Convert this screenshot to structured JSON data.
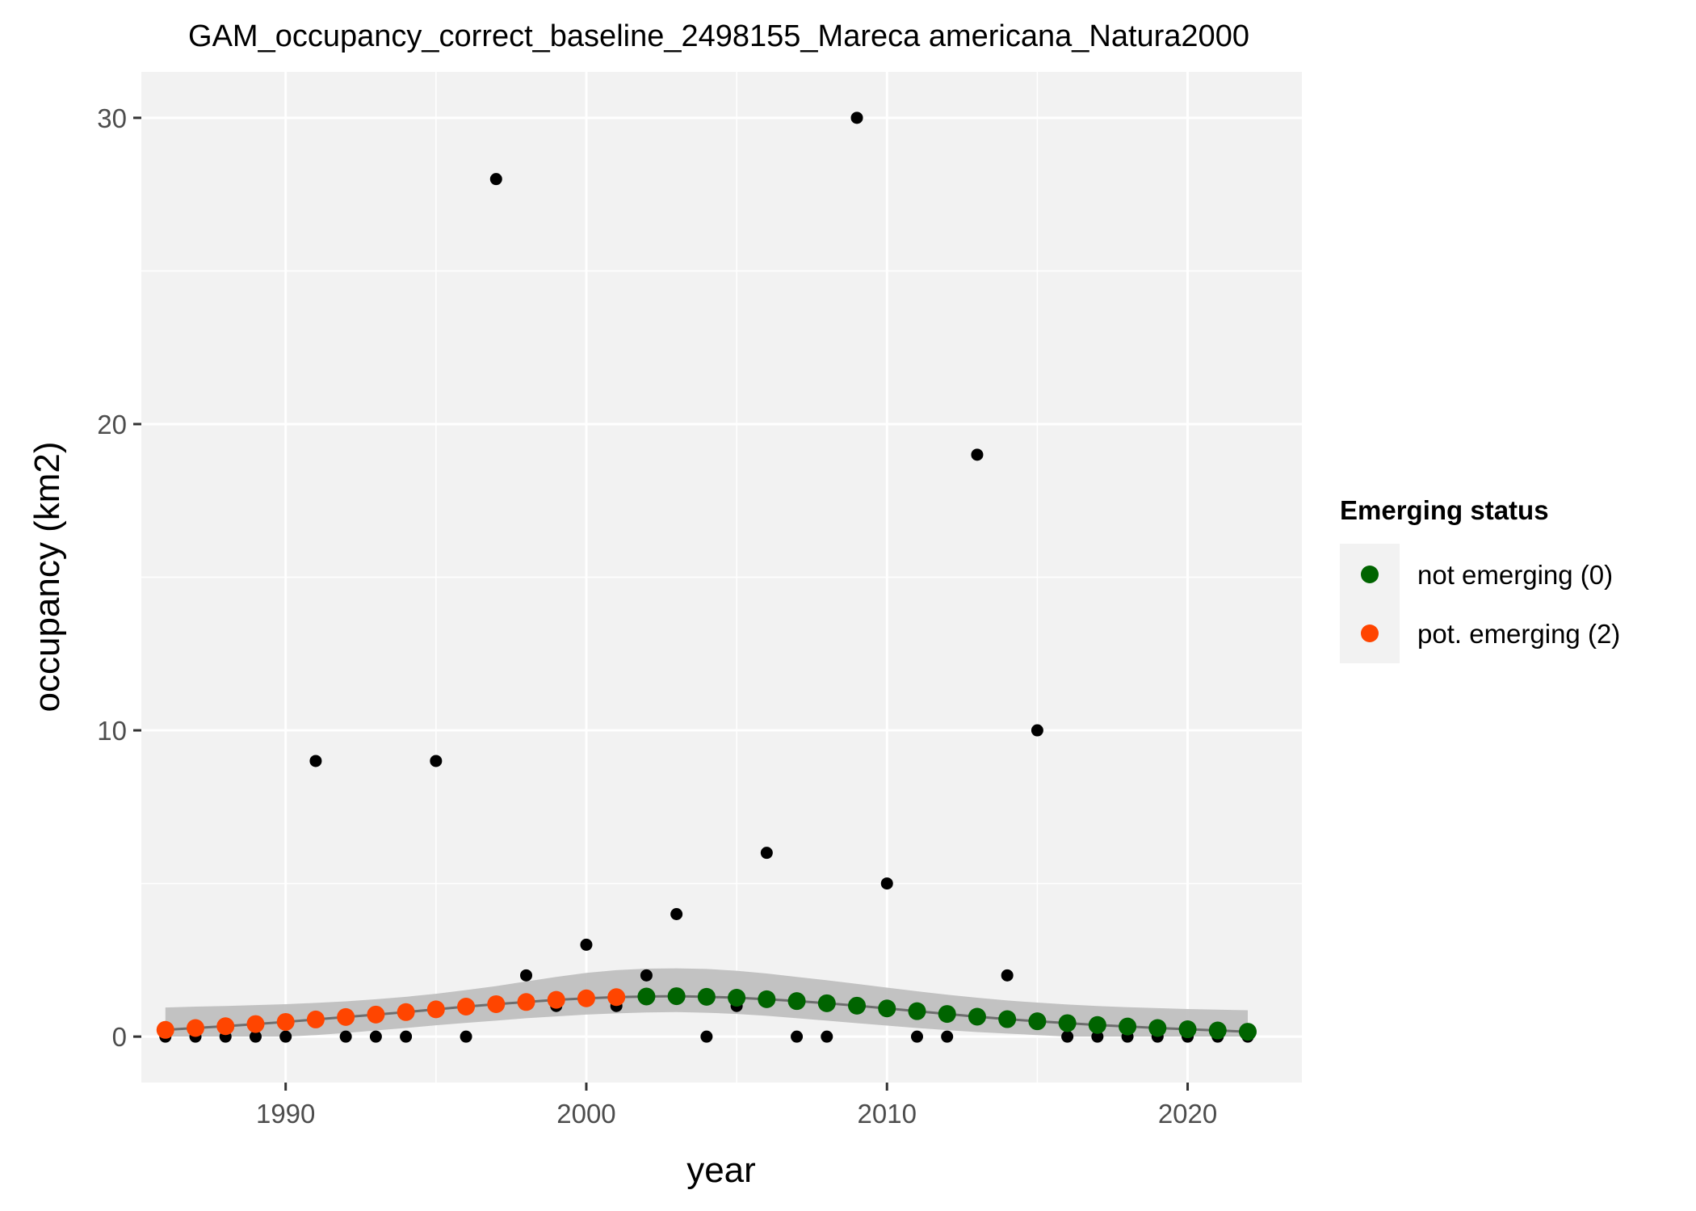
{
  "chart_data": {
    "type": "scatter",
    "title": "GAM_occupancy_correct_baseline_2498155_Mareca americana_Natura2000",
    "xlabel": "year",
    "ylabel": "occupancy (km2)",
    "xlim": [
      1985.2,
      2023.8
    ],
    "ylim": [
      -1.5,
      31.5
    ],
    "x_ticks": [
      1990,
      2000,
      2010,
      2020
    ],
    "x_tick_labels": [
      "1990",
      "2000",
      "2010",
      "2020"
    ],
    "y_ticks": [
      0,
      10,
      20,
      30
    ],
    "y_tick_labels": [
      "0",
      "10",
      "20",
      "30"
    ],
    "x_minor_ticks": [
      1985,
      1995,
      2005,
      2015
    ],
    "y_minor_ticks": [
      5,
      15,
      25
    ],
    "grid": true,
    "background": "#f2f2f2",
    "observed": {
      "color": "#000000",
      "x": [
        1986,
        1987,
        1988,
        1989,
        1990,
        1991,
        1992,
        1993,
        1994,
        1995,
        1996,
        1997,
        1998,
        1999,
        2000,
        2001,
        2002,
        2003,
        2004,
        2005,
        2006,
        2007,
        2008,
        2009,
        2010,
        2011,
        2012,
        2013,
        2014,
        2015,
        2016,
        2017,
        2018,
        2019,
        2020,
        2021,
        2022
      ],
      "y": [
        0,
        0,
        0,
        0,
        0,
        9,
        0,
        0,
        0,
        9,
        0,
        28,
        2,
        1,
        3,
        1,
        2,
        4,
        0,
        1,
        6,
        0,
        0,
        30,
        5,
        0,
        0,
        19,
        2,
        10,
        0,
        0,
        0,
        0,
        0,
        0,
        0
      ]
    },
    "fit": {
      "line_color": "#6e6e6e",
      "ribbon_color": "#bdbdbd",
      "x": [
        1986,
        1987,
        1988,
        1989,
        1990,
        1991,
        1992,
        1993,
        1994,
        1995,
        1996,
        1997,
        1998,
        1999,
        2000,
        2001,
        2002,
        2003,
        2004,
        2005,
        2006,
        2007,
        2008,
        2009,
        2010,
        2011,
        2012,
        2013,
        2014,
        2015,
        2016,
        2017,
        2018,
        2019,
        2020,
        2021,
        2022
      ],
      "y": [
        0.22,
        0.28,
        0.34,
        0.41,
        0.48,
        0.56,
        0.64,
        0.72,
        0.8,
        0.89,
        0.98,
        1.06,
        1.13,
        1.2,
        1.25,
        1.29,
        1.31,
        1.32,
        1.3,
        1.27,
        1.22,
        1.16,
        1.09,
        1.01,
        0.92,
        0.83,
        0.74,
        0.65,
        0.57,
        0.5,
        0.44,
        0.38,
        0.33,
        0.28,
        0.24,
        0.2,
        0.16
      ],
      "upper": [
        0.95,
        0.98,
        1.0,
        1.03,
        1.06,
        1.1,
        1.15,
        1.22,
        1.3,
        1.4,
        1.52,
        1.65,
        1.8,
        1.95,
        2.08,
        2.17,
        2.22,
        2.23,
        2.21,
        2.15,
        2.06,
        1.95,
        1.84,
        1.72,
        1.6,
        1.48,
        1.37,
        1.27,
        1.18,
        1.11,
        1.05,
        1.0,
        0.96,
        0.93,
        0.9,
        0.88,
        0.86
      ],
      "lower": [
        0.0,
        0.0,
        0.0,
        0.0,
        0.0,
        0.05,
        0.12,
        0.2,
        0.28,
        0.37,
        0.45,
        0.52,
        0.6,
        0.66,
        0.72,
        0.76,
        0.79,
        0.8,
        0.78,
        0.74,
        0.68,
        0.6,
        0.52,
        0.44,
        0.36,
        0.28,
        0.21,
        0.15,
        0.1,
        0.05,
        0.0,
        0.0,
        0.0,
        0.0,
        0.0,
        0.0,
        0.0
      ]
    },
    "series": [
      {
        "name": "not emerging (0)",
        "color": "#006400"
      },
      {
        "name": "pot. emerging (2)",
        "color": "#ff4500"
      }
    ],
    "status_split_year": 2002,
    "legend": {
      "title": "Emerging status",
      "position": "right"
    }
  }
}
